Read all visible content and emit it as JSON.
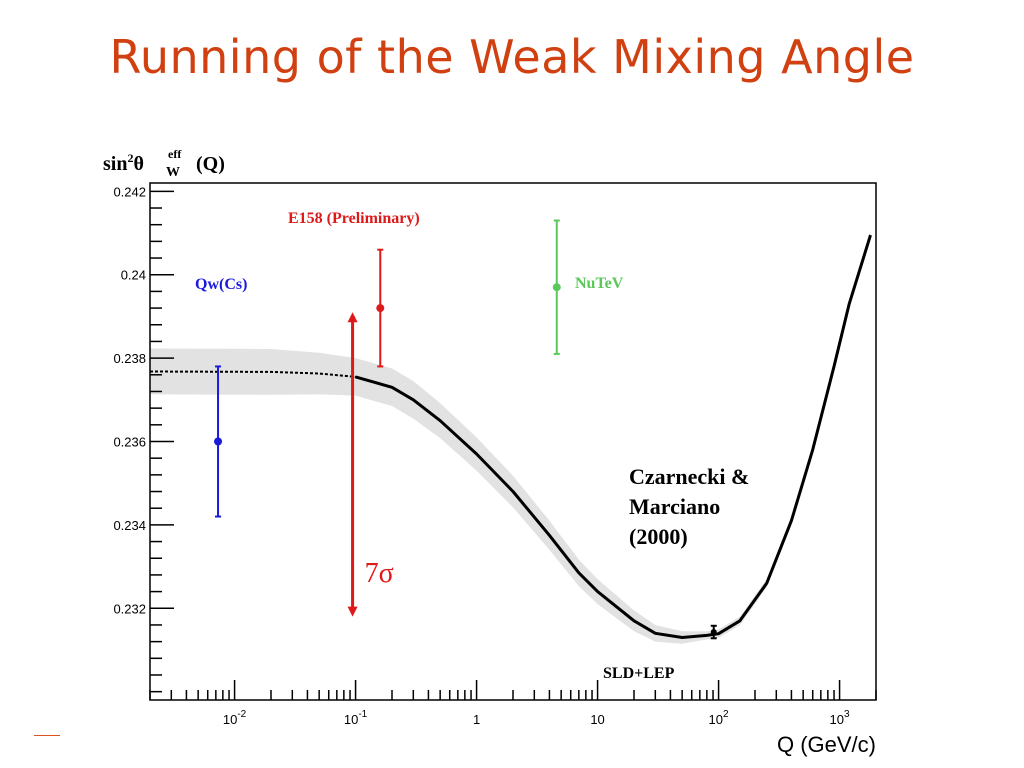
{
  "slide": {
    "title": "Running of the Weak Mixing Angle"
  },
  "chart_data": {
    "type": "scatter",
    "ylabel": {
      "main": "sin",
      "sup": "2",
      "theta": "θ",
      "sup2": "eff",
      "sub": "W",
      "tail": "(Q)"
    },
    "xlabel": "Q (GeV/c)",
    "x_scale": "log",
    "xlim": [
      0.002,
      2000
    ],
    "ylim": [
      0.2298,
      0.2422
    ],
    "y_ticks": [
      0.232,
      0.234,
      0.236,
      0.238,
      0.24,
      0.242
    ],
    "y_tick_labels": [
      "0.232",
      "0.234",
      "0.236",
      "0.238",
      "0.24",
      "0.242"
    ],
    "x_ticks": [
      0.01,
      0.1,
      1,
      10,
      100,
      1000
    ],
    "x_tick_labels": [
      {
        "base": "10",
        "exp": "-2"
      },
      {
        "base": "10",
        "exp": "-1"
      },
      {
        "base": "1",
        "exp": ""
      },
      {
        "base": "10",
        "exp": ""
      },
      {
        "base": "10",
        "exp": "2"
      },
      {
        "base": "10",
        "exp": "3"
      }
    ],
    "theory_curve": {
      "label": "Czarnecki & Marciano (2000)",
      "label_lines": [
        "Czarnecki &",
        "Marciano",
        "(2000)"
      ],
      "points": [
        [
          0.002,
          0.23768
        ],
        [
          0.02,
          0.23767
        ],
        [
          0.05,
          0.23763
        ],
        [
          0.1,
          0.23755
        ],
        [
          0.2,
          0.2373
        ],
        [
          0.3,
          0.237
        ],
        [
          0.5,
          0.2365
        ],
        [
          1,
          0.2357
        ],
        [
          2,
          0.2348
        ],
        [
          4,
          0.23375
        ],
        [
          7,
          0.23285
        ],
        [
          10,
          0.2324
        ],
        [
          20,
          0.2317
        ],
        [
          30,
          0.2314
        ],
        [
          50,
          0.2313
        ],
        [
          80,
          0.23135
        ],
        [
          100,
          0.23139
        ],
        [
          150,
          0.2317
        ],
        [
          250,
          0.2326
        ],
        [
          400,
          0.2341
        ],
        [
          600,
          0.2358
        ],
        [
          900,
          0.2378
        ],
        [
          1200,
          0.2393
        ],
        [
          1800,
          0.24095
        ]
      ],
      "band_halfwidth": [
        0.00055,
        0.00055,
        0.0005,
        0.00045,
        0.00045,
        0.00045,
        0.00042,
        0.0004,
        0.00038,
        0.00035,
        0.00032,
        0.0003,
        0.00025,
        0.0002,
        0.00015,
        0.0001,
        0.0001,
        0.0001,
        0.0001,
        0.0001,
        0.0001,
        0.0001,
        0.0001,
        0.0001
      ]
    },
    "measurements": [
      {
        "name": "Qw(Cs)",
        "x": 0.0073,
        "y": 0.236,
        "ylo": 0.2342,
        "yhi": 0.2378,
        "color": "#1a1adc"
      },
      {
        "name": "E158 (Preliminary)",
        "x": 0.16,
        "y": 0.2392,
        "ylo": 0.2378,
        "yhi": 0.2406,
        "color": "#dc1a1a"
      },
      {
        "name": "NuTeV",
        "x": 4.6,
        "y": 0.2397,
        "ylo": 0.2381,
        "yhi": 0.2413,
        "color": "#5ac85a"
      },
      {
        "name": "SLD+LEP",
        "x": 91.2,
        "y": 0.23143,
        "ylo": 0.23128,
        "yhi": 0.23158,
        "color": "#000000"
      }
    ],
    "annotation": {
      "text": "7σ",
      "x": 0.1,
      "y_from": 0.2318,
      "y_to": 0.2391,
      "color": "#e01818"
    }
  }
}
